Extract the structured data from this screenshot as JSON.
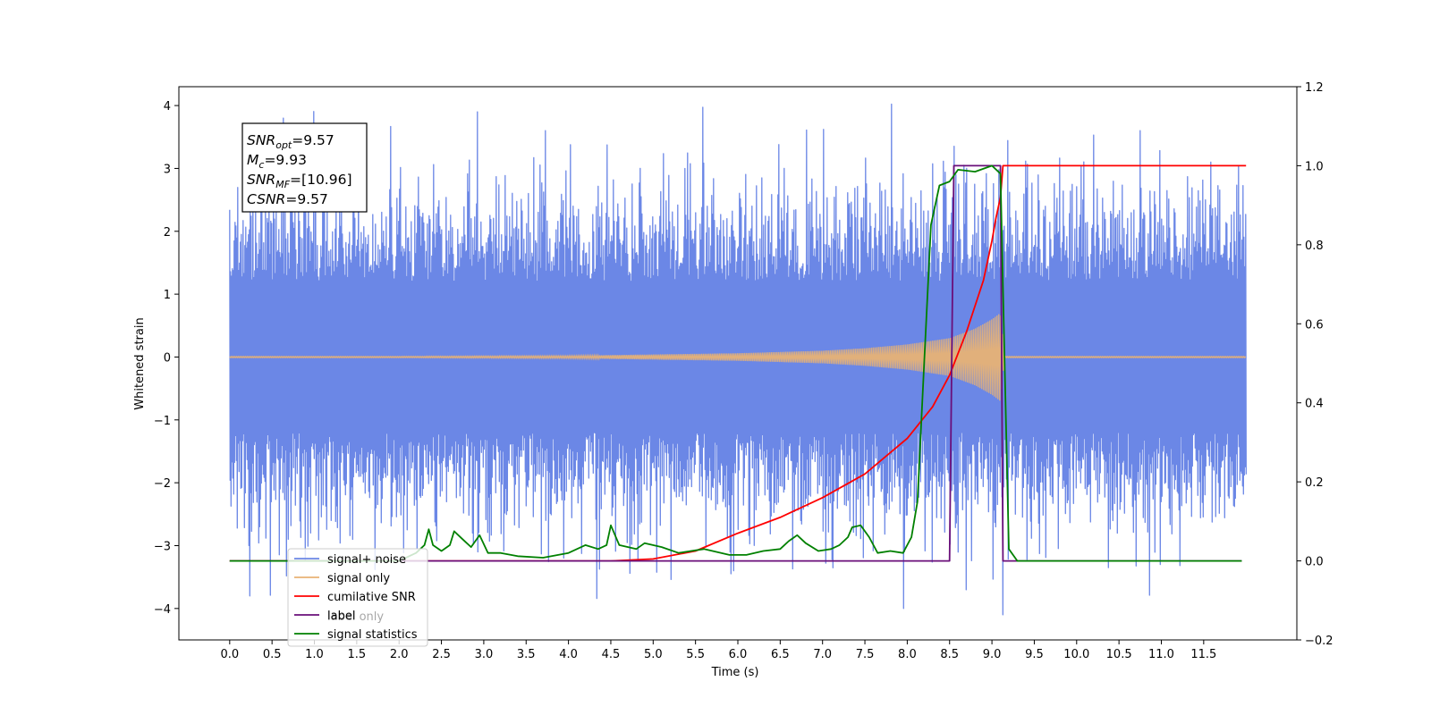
{
  "chart_data": {
    "type": "line",
    "title": "",
    "xlabel": "Time (s)",
    "ylabel": "Whitened strain",
    "y2label": "",
    "xlim": [
      -0.6,
      12.6
    ],
    "ylim": [
      -4.5,
      4.3
    ],
    "y2lim": [
      -0.2,
      1.2
    ],
    "xticks": [
      "0.0",
      "0.5",
      "1.0",
      "1.5",
      "2.0",
      "2.5",
      "3.0",
      "3.5",
      "4.0",
      "4.5",
      "5.0",
      "5.5",
      "6.0",
      "6.5",
      "7.0",
      "7.5",
      "8.0",
      "8.5",
      "9.0",
      "9.5",
      "10.0",
      "10.5",
      "11.0",
      "11.5"
    ],
    "yticks": [
      "4",
      "3",
      "2",
      "1",
      "0",
      "−1",
      "−2",
      "−3",
      "−4"
    ],
    "y2ticks": [
      "1.2",
      "1.0",
      "0.8",
      "0.6",
      "0.4",
      "0.2",
      "0.0",
      "−0.2"
    ],
    "grid": false,
    "legend_position": "lower-left",
    "annotation": {
      "lines": [
        {
          "name": "SNR",
          "sub": "opt",
          "value": "=9.57"
        },
        {
          "name": "M",
          "sub": "c",
          "value": "=9.93"
        },
        {
          "name": "SNR",
          "sub": "MF",
          "value": "=[10.96]"
        },
        {
          "name": "CSNR",
          "sub": "",
          "value": "=9.57"
        }
      ]
    },
    "series": [
      {
        "name": "signal+ noise",
        "axis": "left",
        "color": "#6b87e6",
        "style": "noise",
        "x_range": [
          0.0,
          12.0
        ],
        "envelope_typical": 2.0,
        "peaks": [
          [
            0.35,
            -2.7
          ],
          [
            0.95,
            -2.8
          ],
          [
            1.45,
            -2.9
          ],
          [
            2.93,
            3.9
          ],
          [
            2.93,
            -3.1
          ],
          [
            4.85,
            3.0
          ],
          [
            5.9,
            -3.1
          ],
          [
            6.55,
            3.0
          ],
          [
            7.95,
            -4.0
          ],
          [
            8.7,
            3.0
          ],
          [
            9.13,
            -4.1
          ],
          [
            10.75,
            3.6
          ],
          [
            10.98,
            -3.3
          ]
        ]
      },
      {
        "name": "signal only",
        "axis": "left",
        "color": "#e8b275",
        "style": "chirp",
        "x_range": [
          0.0,
          12.0
        ],
        "envelope": [
          [
            0.0,
            0.0
          ],
          [
            4.0,
            0.02
          ],
          [
            6.0,
            0.06
          ],
          [
            7.0,
            0.1
          ],
          [
            7.5,
            0.14
          ],
          [
            8.0,
            0.2
          ],
          [
            8.5,
            0.3
          ],
          [
            8.8,
            0.45
          ],
          [
            9.0,
            0.6
          ],
          [
            9.1,
            0.7
          ],
          [
            9.15,
            0.0
          ],
          [
            12.0,
            0.0
          ]
        ]
      },
      {
        "name": "cumilative SNR",
        "axis": "right",
        "color": "#ff0000",
        "style": "line",
        "points": [
          [
            0.0,
            0.0
          ],
          [
            4.5,
            0.0
          ],
          [
            5.0,
            0.005
          ],
          [
            5.5,
            0.025
          ],
          [
            6.0,
            0.07
          ],
          [
            6.5,
            0.11
          ],
          [
            7.0,
            0.16
          ],
          [
            7.5,
            0.22
          ],
          [
            8.0,
            0.31
          ],
          [
            8.3,
            0.39
          ],
          [
            8.5,
            0.47
          ],
          [
            8.7,
            0.58
          ],
          [
            8.9,
            0.71
          ],
          [
            9.0,
            0.81
          ],
          [
            9.05,
            0.87
          ],
          [
            9.1,
            0.92
          ],
          [
            9.13,
            1.0
          ],
          [
            12.0,
            1.0
          ]
        ]
      },
      {
        "name": "label",
        "axis": "right",
        "color": "#6a0f7a",
        "style": "line",
        "points": [
          [
            0.0,
            0.0
          ],
          [
            8.5,
            0.0
          ],
          [
            8.55,
            1.0
          ],
          [
            9.1,
            1.0
          ],
          [
            9.13,
            0.0
          ],
          [
            11.95,
            0.0
          ]
        ]
      },
      {
        "name": "signal statistics",
        "axis": "right",
        "color": "#008000",
        "style": "line",
        "points": [
          [
            0.0,
            0.0
          ],
          [
            2.0,
            0.0
          ],
          [
            2.2,
            0.02
          ],
          [
            2.3,
            0.04
          ],
          [
            2.35,
            0.08
          ],
          [
            2.4,
            0.04
          ],
          [
            2.5,
            0.025
          ],
          [
            2.6,
            0.04
          ],
          [
            2.65,
            0.075
          ],
          [
            2.75,
            0.055
          ],
          [
            2.85,
            0.035
          ],
          [
            2.95,
            0.065
          ],
          [
            3.05,
            0.02
          ],
          [
            3.2,
            0.02
          ],
          [
            3.4,
            0.012
          ],
          [
            3.7,
            0.008
          ],
          [
            4.0,
            0.02
          ],
          [
            4.2,
            0.04
          ],
          [
            4.35,
            0.03
          ],
          [
            4.45,
            0.04
          ],
          [
            4.5,
            0.09
          ],
          [
            4.6,
            0.04
          ],
          [
            4.8,
            0.03
          ],
          [
            4.9,
            0.045
          ],
          [
            5.1,
            0.035
          ],
          [
            5.3,
            0.02
          ],
          [
            5.6,
            0.03
          ],
          [
            5.9,
            0.015
          ],
          [
            6.1,
            0.015
          ],
          [
            6.3,
            0.025
          ],
          [
            6.5,
            0.03
          ],
          [
            6.6,
            0.05
          ],
          [
            6.7,
            0.065
          ],
          [
            6.8,
            0.045
          ],
          [
            6.95,
            0.025
          ],
          [
            7.1,
            0.03
          ],
          [
            7.2,
            0.04
          ],
          [
            7.3,
            0.06
          ],
          [
            7.35,
            0.085
          ],
          [
            7.45,
            0.09
          ],
          [
            7.55,
            0.06
          ],
          [
            7.65,
            0.02
          ],
          [
            7.8,
            0.025
          ],
          [
            7.95,
            0.02
          ],
          [
            8.05,
            0.06
          ],
          [
            8.12,
            0.15
          ],
          [
            8.2,
            0.5
          ],
          [
            8.28,
            0.85
          ],
          [
            8.38,
            0.95
          ],
          [
            8.5,
            0.96
          ],
          [
            8.6,
            0.99
          ],
          [
            8.8,
            0.985
          ],
          [
            9.0,
            1.0
          ],
          [
            9.1,
            0.98
          ],
          [
            9.15,
            0.5
          ],
          [
            9.2,
            0.03
          ],
          [
            9.3,
            0.0
          ],
          [
            11.95,
            0.0
          ]
        ]
      }
    ],
    "legend_entries": [
      "signal+ noise",
      "signal only",
      "cumilative SNR",
      "label",
      "signal statistics"
    ],
    "legend_ghost_text": "label only"
  }
}
